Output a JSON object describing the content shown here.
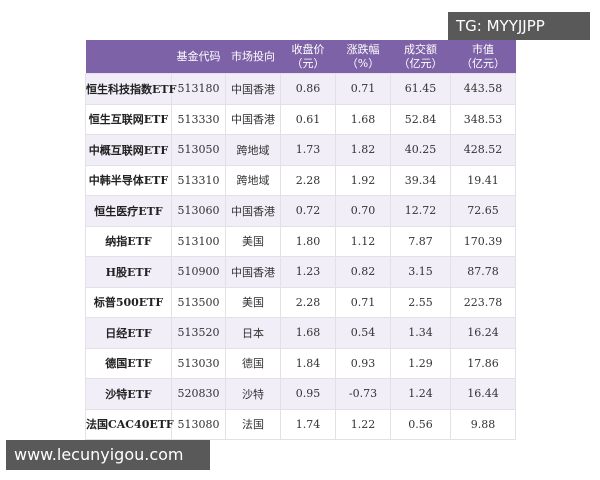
{
  "watermark_top": "TG: MYYJJPP",
  "watermark_bottom": "www.lecunyigou.com",
  "table": {
    "header": [
      "",
      "基金代码",
      "市场投向",
      "收盘价\n（元）",
      "涨跌幅\n（%）",
      "成交额\n（亿元）",
      "市值\n（亿元）"
    ],
    "rows": [
      [
        "恒生科技指数ETF",
        "513180",
        "中国香港",
        "0.86",
        "0.71",
        "61.45",
        "443.58"
      ],
      [
        "恒生互联网ETF",
        "513330",
        "中国香港",
        "0.61",
        "1.68",
        "52.84",
        "348.53"
      ],
      [
        "中概互联网ETF",
        "513050",
        "跨地域",
        "1.73",
        "1.82",
        "40.25",
        "428.52"
      ],
      [
        "中韩半导体ETF",
        "513310",
        "跨地域",
        "2.28",
        "1.92",
        "39.34",
        "19.41"
      ],
      [
        "恒生医疗ETF",
        "513060",
        "中国香港",
        "0.72",
        "0.70",
        "12.72",
        "72.65"
      ],
      [
        "纳指ETF",
        "513100",
        "美国",
        "1.80",
        "1.12",
        "7.87",
        "170.39"
      ],
      [
        "H股ETF",
        "510900",
        "中国香港",
        "1.23",
        "0.82",
        "3.15",
        "87.78"
      ],
      [
        "标普500ETF",
        "513500",
        "美国",
        "2.28",
        "0.71",
        "2.55",
        "223.78"
      ],
      [
        "日经ETF",
        "513520",
        "日本",
        "1.68",
        "0.54",
        "1.34",
        "16.24"
      ],
      [
        "德国ETF",
        "513030",
        "德国",
        "1.84",
        "0.93",
        "1.29",
        "17.86"
      ],
      [
        "沙特ETF",
        "520830",
        "沙特",
        "0.95",
        "-0.73",
        "1.24",
        "16.44"
      ],
      [
        "法国CAC40ETF",
        "513080",
        "法国",
        "1.74",
        "1.22",
        "0.56",
        "9.88"
      ]
    ]
  }
}
